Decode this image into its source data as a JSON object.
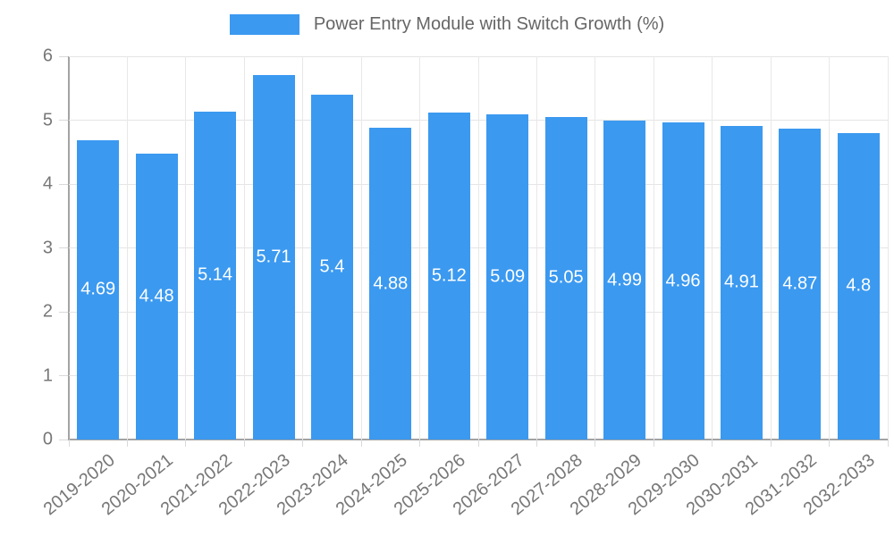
{
  "legend": {
    "label": "Power Entry Module with Switch Growth (%)"
  },
  "chart_data": {
    "type": "bar",
    "title": "Power Entry Module with Switch Growth (%)",
    "categories": [
      "2019-2020",
      "2020-2021",
      "2021-2022",
      "2022-2023",
      "2023-2024",
      "2024-2025",
      "2025-2026",
      "2026-2027",
      "2027-2028",
      "2028-2029",
      "2029-2030",
      "2030-2031",
      "2031-2032",
      "2032-2033"
    ],
    "values": [
      4.69,
      4.48,
      5.14,
      5.71,
      5.4,
      4.88,
      5.12,
      5.09,
      5.05,
      4.99,
      4.96,
      4.91,
      4.87,
      4.8
    ],
    "value_labels": [
      "4.69",
      "4.48",
      "5.14",
      "5.71",
      "5.4",
      "4.88",
      "5.12",
      "5.09",
      "5.05",
      "4.99",
      "4.96",
      "4.91",
      "4.87",
      "4.8"
    ],
    "xlabel": "",
    "ylabel": "",
    "ylim": [
      0,
      6
    ],
    "yticks": [
      "0",
      "1",
      "2",
      "3",
      "4",
      "5",
      "6"
    ],
    "grid": true,
    "legend_position": "top",
    "x_label_rotation_deg": -39,
    "colors": {
      "bar": "#3b99f0",
      "grid": "#e5e5e5",
      "axis": "#a3a3a3",
      "tick_text": "#777777",
      "legend_text": "#666666",
      "value_text": "#ffffff"
    }
  }
}
